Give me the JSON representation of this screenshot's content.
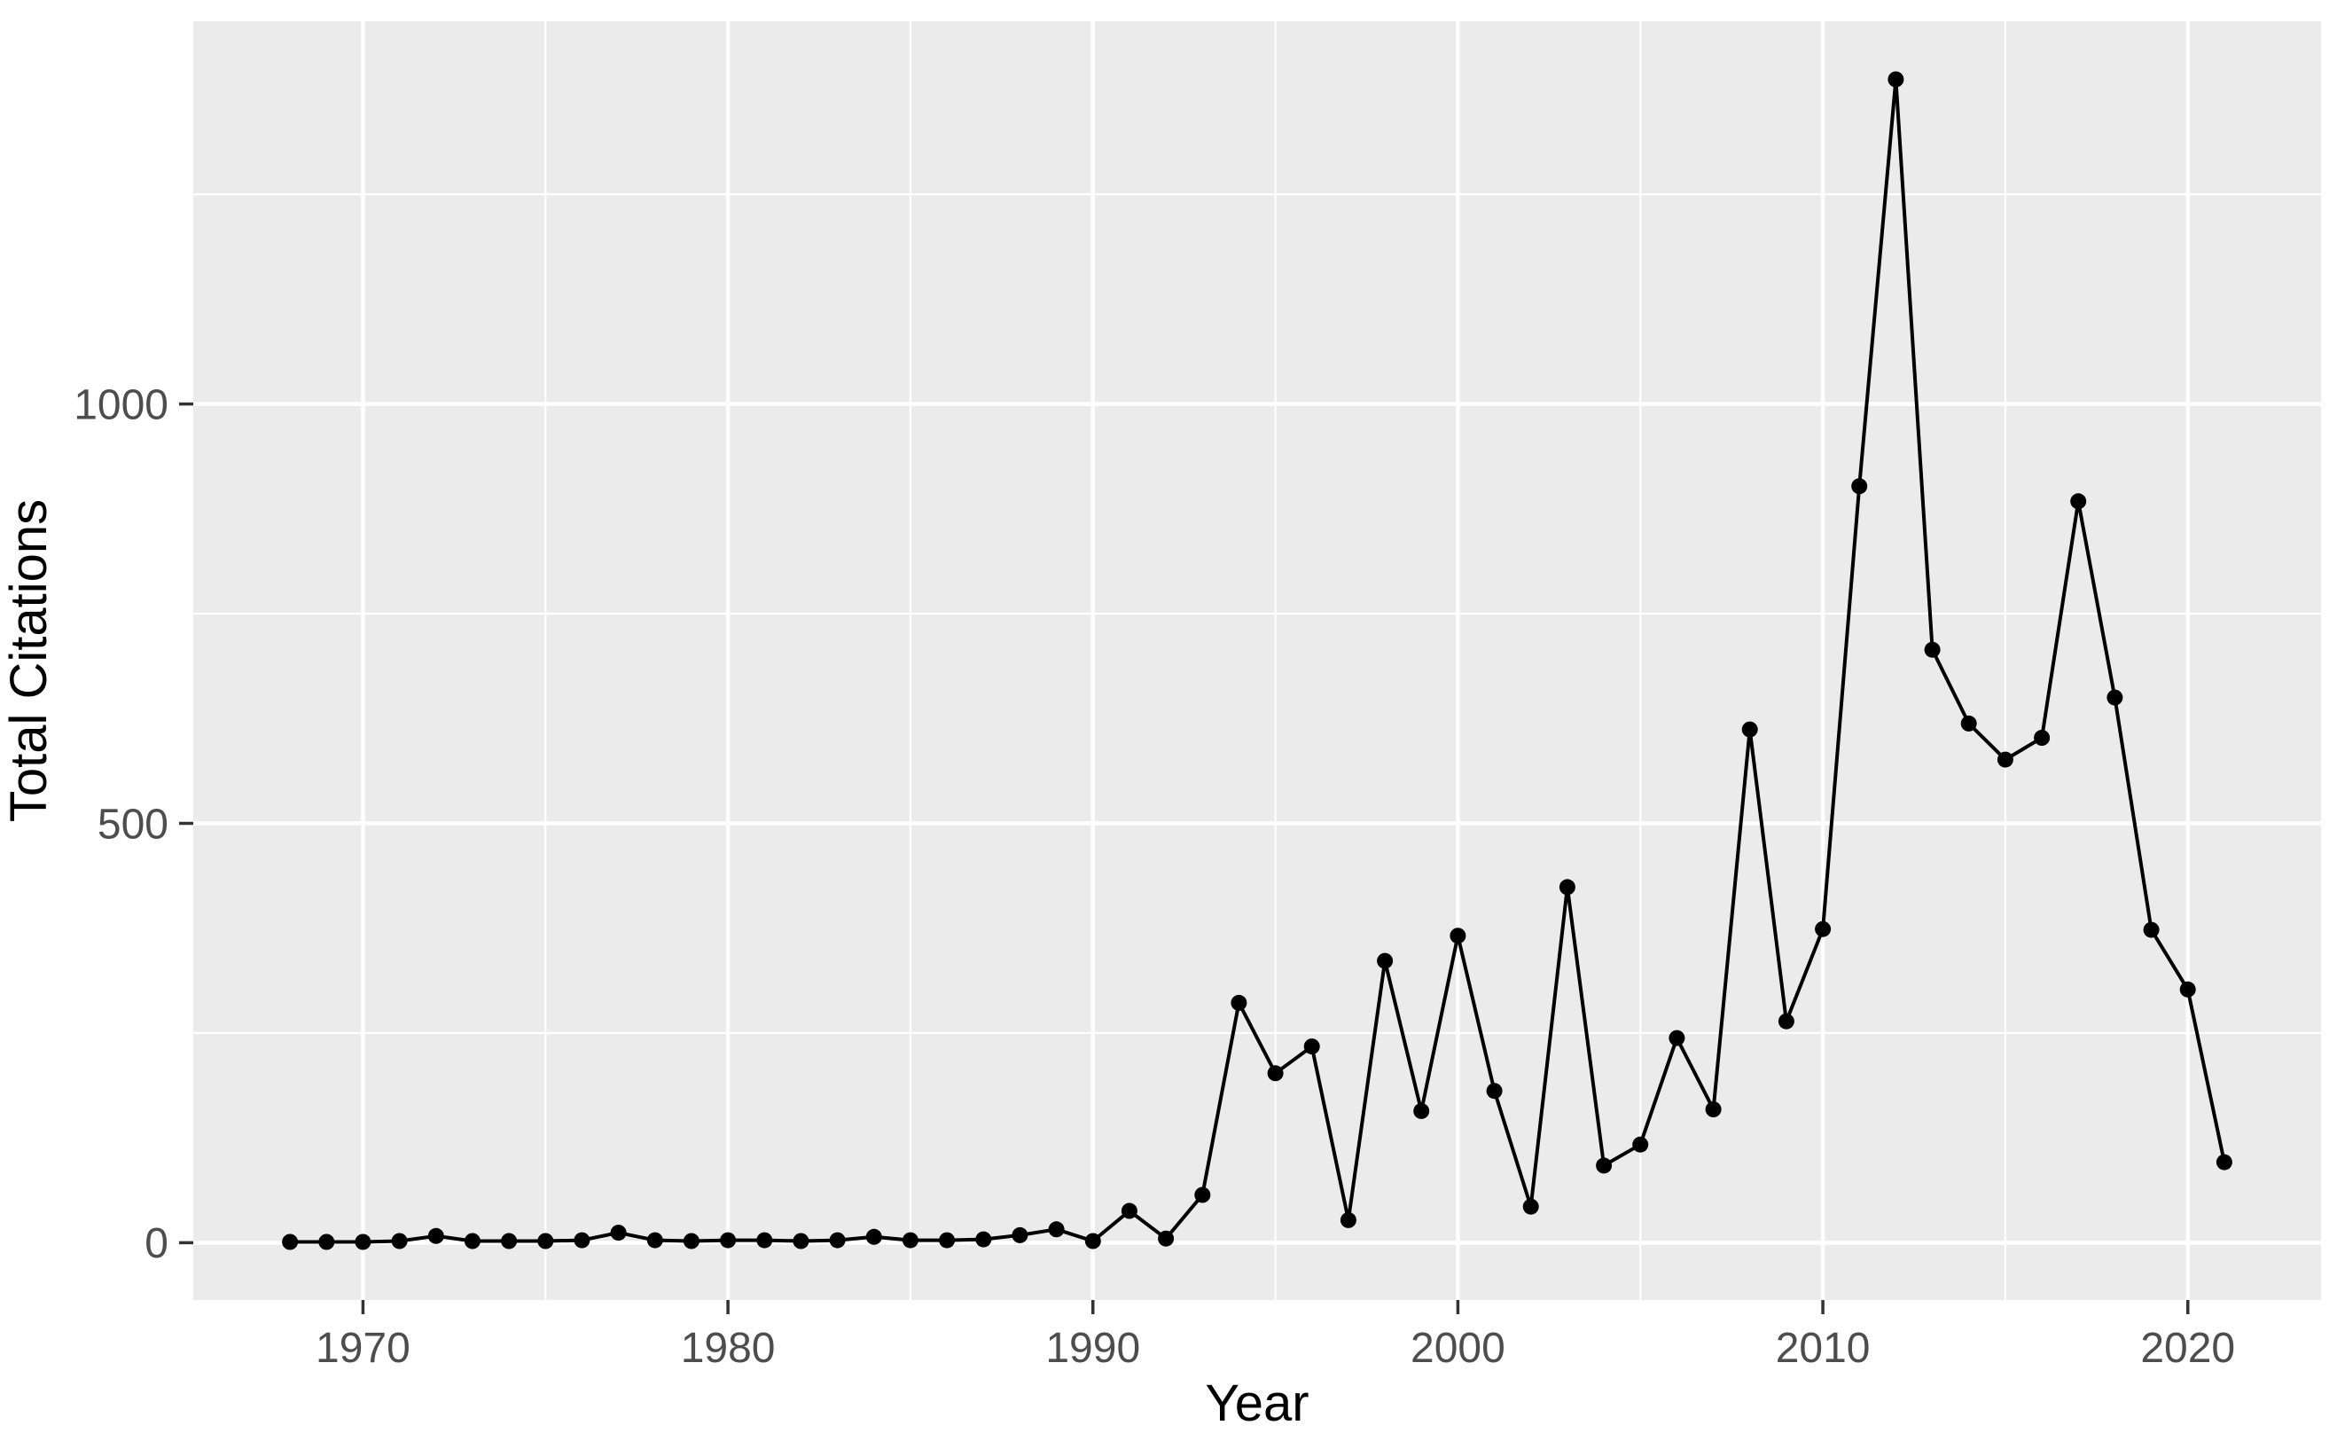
{
  "figure": {
    "x_axis_title": "Year",
    "y_axis_title": "Total Citations"
  },
  "chart_data": {
    "type": "line",
    "title": "",
    "xlabel": "Year",
    "ylabel": "Total Citations",
    "x": [
      1968,
      1969,
      1970,
      1971,
      1972,
      1973,
      1974,
      1975,
      1976,
      1977,
      1978,
      1979,
      1980,
      1981,
      1982,
      1983,
      1984,
      1985,
      1986,
      1987,
      1988,
      1989,
      1990,
      1991,
      1992,
      1993,
      1994,
      1995,
      1996,
      1997,
      1998,
      1999,
      2000,
      2001,
      2002,
      2003,
      2004,
      2005,
      2006,
      2007,
      2008,
      2009,
      2010,
      2011,
      2012,
      2013,
      2014,
      2015,
      2016,
      2017,
      2018,
      2019,
      2020,
      2021
    ],
    "series": [
      {
        "name": "Total Citations",
        "values": [
          1,
          1,
          1,
          2,
          8,
          2,
          2,
          2,
          3,
          12,
          3,
          2,
          3,
          3,
          2,
          3,
          7,
          3,
          3,
          4,
          9,
          16,
          2,
          38,
          5,
          57,
          286,
          202,
          234,
          27,
          336,
          157,
          366,
          181,
          43,
          424,
          92,
          117,
          244,
          159,
          612,
          264,
          374,
          902,
          1387,
          707,
          619,
          576,
          602,
          884,
          650,
          373,
          302,
          96
        ]
      }
    ],
    "x_ticks": [
      1970,
      1980,
      1990,
      2000,
      2010,
      2020
    ],
    "x_minor_ticks": [
      1975,
      1985,
      1995,
      2005,
      2015
    ],
    "y_ticks": [
      0,
      500,
      1000
    ],
    "y_minor_ticks": [
      250,
      750,
      1250
    ],
    "xlim": [
      1968,
      2021
    ],
    "ylim": [
      0,
      1387
    ],
    "grid": "on",
    "legend": "none",
    "marker": "point",
    "colors": {
      "line": "#000000",
      "point": "#000000",
      "panel_background": "#EBEBEB",
      "gridline": "#FFFFFF",
      "tick_text": "#4D4D4D",
      "axis_title": "#000000",
      "tick_mark": "#333333"
    }
  }
}
